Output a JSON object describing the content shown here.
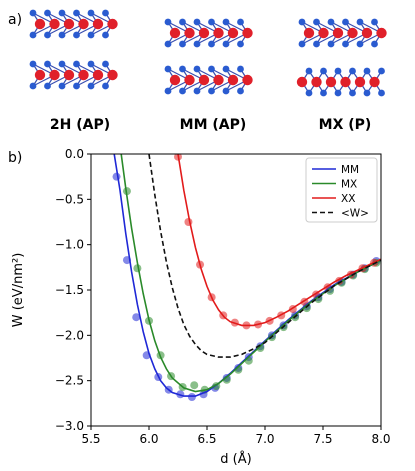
{
  "figure": {
    "panel_a_label": "a)",
    "panel_b_label": "b)",
    "structures": [
      {
        "label": "2H (AP)"
      },
      {
        "label": "MM (AP)"
      },
      {
        "label": "MX (P)"
      }
    ],
    "colors": {
      "metal_atom": "#e0202a",
      "chalcogen_atom": "#2a5bd0",
      "bond": "#3a4fb0"
    }
  },
  "chart_data": {
    "type": "line",
    "xlabel": "d (Å)",
    "ylabel": "W (eV/nm²)",
    "xlim": [
      5.5,
      8.0
    ],
    "ylim": [
      -3.0,
      0.0
    ],
    "xticks": [
      5.5,
      6.0,
      6.5,
      7.0,
      7.5,
      8.0
    ],
    "xtick_labels": [
      "5.5",
      "6.0",
      "6.5",
      "7.0",
      "7.5",
      "8.0"
    ],
    "yticks": [
      -3.0,
      -2.5,
      -2.0,
      -1.5,
      -1.0,
      -0.5,
      0.0
    ],
    "ytick_labels": [
      "−3.0",
      "−2.5",
      "−2.0",
      "−1.5",
      "−1.0",
      "−0.5",
      "0.0"
    ],
    "grid": false,
    "legend": "top-right",
    "series": [
      {
        "name": "MM",
        "color": "#1f28d6",
        "style": "solid",
        "curve": [
          [
            5.7,
            0.0
          ],
          [
            5.75,
            -0.4
          ],
          [
            5.8,
            -0.88
          ],
          [
            5.85,
            -1.3
          ],
          [
            5.9,
            -1.66
          ],
          [
            5.95,
            -1.96
          ],
          [
            6.0,
            -2.2
          ],
          [
            6.05,
            -2.37
          ],
          [
            6.1,
            -2.5
          ],
          [
            6.15,
            -2.58
          ],
          [
            6.2,
            -2.63
          ],
          [
            6.3,
            -2.67
          ],
          [
            6.4,
            -2.67
          ],
          [
            6.5,
            -2.62
          ],
          [
            6.6,
            -2.53
          ],
          [
            6.7,
            -2.42
          ],
          [
            6.8,
            -2.3
          ],
          [
            6.9,
            -2.18
          ],
          [
            7.0,
            -2.06
          ],
          [
            7.2,
            -1.83
          ],
          [
            7.4,
            -1.62
          ],
          [
            7.6,
            -1.44
          ],
          [
            7.8,
            -1.3
          ],
          [
            8.0,
            -1.17
          ]
        ],
        "points": [
          [
            5.72,
            -0.25
          ],
          [
            5.81,
            -1.17
          ],
          [
            5.89,
            -1.8
          ],
          [
            5.98,
            -2.22
          ],
          [
            6.08,
            -2.46
          ],
          [
            6.17,
            -2.6
          ],
          [
            6.27,
            -2.65
          ],
          [
            6.37,
            -2.68
          ],
          [
            6.47,
            -2.65
          ],
          [
            6.57,
            -2.58
          ],
          [
            6.67,
            -2.47
          ],
          [
            6.77,
            -2.36
          ],
          [
            6.86,
            -2.24
          ],
          [
            6.96,
            -2.12
          ],
          [
            7.06,
            -2.0
          ],
          [
            7.16,
            -1.89
          ],
          [
            7.26,
            -1.78
          ],
          [
            7.36,
            -1.68
          ],
          [
            7.46,
            -1.58
          ],
          [
            7.56,
            -1.49
          ],
          [
            7.66,
            -1.41
          ],
          [
            7.76,
            -1.33
          ],
          [
            7.86,
            -1.26
          ],
          [
            7.96,
            -1.18
          ]
        ]
      },
      {
        "name": "MX",
        "color": "#2a8a2a",
        "style": "solid",
        "curve": [
          [
            5.76,
            0.0
          ],
          [
            5.8,
            -0.38
          ],
          [
            5.85,
            -0.82
          ],
          [
            5.9,
            -1.2
          ],
          [
            5.95,
            -1.54
          ],
          [
            6.0,
            -1.83
          ],
          [
            6.05,
            -2.06
          ],
          [
            6.1,
            -2.24
          ],
          [
            6.15,
            -2.37
          ],
          [
            6.2,
            -2.47
          ],
          [
            6.3,
            -2.58
          ],
          [
            6.4,
            -2.62
          ],
          [
            6.5,
            -2.6
          ],
          [
            6.6,
            -2.53
          ],
          [
            6.7,
            -2.43
          ],
          [
            6.8,
            -2.31
          ],
          [
            6.9,
            -2.19
          ],
          [
            7.0,
            -2.07
          ],
          [
            7.2,
            -1.84
          ],
          [
            7.4,
            -1.63
          ],
          [
            7.6,
            -1.45
          ],
          [
            7.8,
            -1.3
          ],
          [
            8.0,
            -1.17
          ]
        ],
        "points": [
          [
            5.81,
            -0.41
          ],
          [
            5.9,
            -1.26
          ],
          [
            6.0,
            -1.84
          ],
          [
            6.1,
            -2.22
          ],
          [
            6.19,
            -2.45
          ],
          [
            6.29,
            -2.57
          ],
          [
            6.39,
            -2.55
          ],
          [
            6.48,
            -2.6
          ],
          [
            6.58,
            -2.56
          ],
          [
            6.67,
            -2.49
          ],
          [
            6.77,
            -2.38
          ],
          [
            6.86,
            -2.28
          ],
          [
            6.96,
            -2.14
          ],
          [
            7.06,
            -2.02
          ],
          [
            7.16,
            -1.91
          ],
          [
            7.26,
            -1.8
          ],
          [
            7.36,
            -1.7
          ],
          [
            7.46,
            -1.6
          ],
          [
            7.56,
            -1.51
          ],
          [
            7.66,
            -1.42
          ],
          [
            7.76,
            -1.34
          ],
          [
            7.86,
            -1.27
          ],
          [
            7.96,
            -1.2
          ]
        ]
      },
      {
        "name": "XX",
        "color": "#e21b1b",
        "style": "solid",
        "curve": [
          [
            6.25,
            0.0
          ],
          [
            6.3,
            -0.4
          ],
          [
            6.35,
            -0.74
          ],
          [
            6.4,
            -1.03
          ],
          [
            6.45,
            -1.27
          ],
          [
            6.5,
            -1.46
          ],
          [
            6.55,
            -1.61
          ],
          [
            6.6,
            -1.72
          ],
          [
            6.65,
            -1.8
          ],
          [
            6.7,
            -1.85
          ],
          [
            6.8,
            -1.89
          ],
          [
            6.9,
            -1.89
          ],
          [
            7.0,
            -1.86
          ],
          [
            7.1,
            -1.8
          ],
          [
            7.2,
            -1.73
          ],
          [
            7.3,
            -1.65
          ],
          [
            7.4,
            -1.57
          ],
          [
            7.5,
            -1.49
          ],
          [
            7.6,
            -1.41
          ],
          [
            7.7,
            -1.34
          ],
          [
            7.8,
            -1.28
          ],
          [
            7.9,
            -1.22
          ],
          [
            8.0,
            -1.16
          ]
        ],
        "points": [
          [
            6.25,
            -0.03
          ],
          [
            6.34,
            -0.75
          ],
          [
            6.44,
            -1.22
          ],
          [
            6.54,
            -1.58
          ],
          [
            6.64,
            -1.78
          ],
          [
            6.74,
            -1.86
          ],
          [
            6.84,
            -1.89
          ],
          [
            6.94,
            -1.88
          ],
          [
            7.04,
            -1.84
          ],
          [
            7.14,
            -1.78
          ],
          [
            7.24,
            -1.71
          ],
          [
            7.34,
            -1.63
          ],
          [
            7.44,
            -1.55
          ],
          [
            7.54,
            -1.47
          ],
          [
            7.64,
            -1.4
          ],
          [
            7.74,
            -1.33
          ],
          [
            7.84,
            -1.26
          ],
          [
            7.94,
            -1.2
          ]
        ]
      },
      {
        "name": "<W>",
        "color": "#111111",
        "style": "dashed",
        "curve": [
          [
            6.0,
            0.0
          ],
          [
            6.05,
            -0.45
          ],
          [
            6.1,
            -0.85
          ],
          [
            6.15,
            -1.19
          ],
          [
            6.2,
            -1.47
          ],
          [
            6.25,
            -1.7
          ],
          [
            6.3,
            -1.88
          ],
          [
            6.35,
            -2.01
          ],
          [
            6.4,
            -2.1
          ],
          [
            6.45,
            -2.17
          ],
          [
            6.5,
            -2.21
          ],
          [
            6.6,
            -2.24
          ],
          [
            6.7,
            -2.24
          ],
          [
            6.8,
            -2.21
          ],
          [
            6.9,
            -2.15
          ],
          [
            7.0,
            -2.08
          ],
          [
            7.2,
            -1.86
          ],
          [
            7.4,
            -1.64
          ],
          [
            7.6,
            -1.45
          ],
          [
            7.8,
            -1.3
          ],
          [
            8.0,
            -1.17
          ]
        ],
        "points": []
      }
    ]
  }
}
